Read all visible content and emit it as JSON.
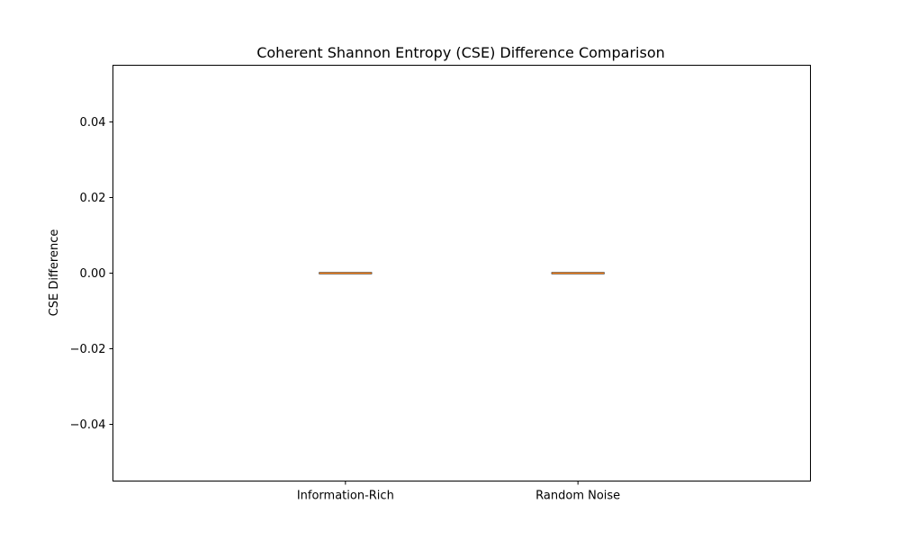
{
  "chart_data": {
    "type": "box",
    "title": "Coherent Shannon Entropy (CSE) Difference Comparison",
    "xlabel": "",
    "ylabel": "CSE Difference",
    "categories": [
      "Information-Rich",
      "Random Noise"
    ],
    "ylim": [
      -0.055,
      0.055
    ],
    "yticks": [
      -0.04,
      -0.02,
      0.0,
      0.02,
      0.04
    ],
    "ytick_labels": [
      "−0.04",
      "−0.02",
      "0.00",
      "0.02",
      "0.04"
    ],
    "series": [
      {
        "category": "Information-Rich",
        "min": 0.0,
        "q1": 0.0,
        "median": 0.0,
        "q3": 0.0,
        "max": 0.0
      },
      {
        "category": "Random Noise",
        "min": 0.0,
        "q1": 0.0,
        "median": 0.0,
        "q3": 0.0,
        "max": 0.0
      }
    ],
    "grid": false,
    "colors": {
      "box": "#000000",
      "median": "#ff7f0e",
      "axes": "#000000"
    }
  }
}
